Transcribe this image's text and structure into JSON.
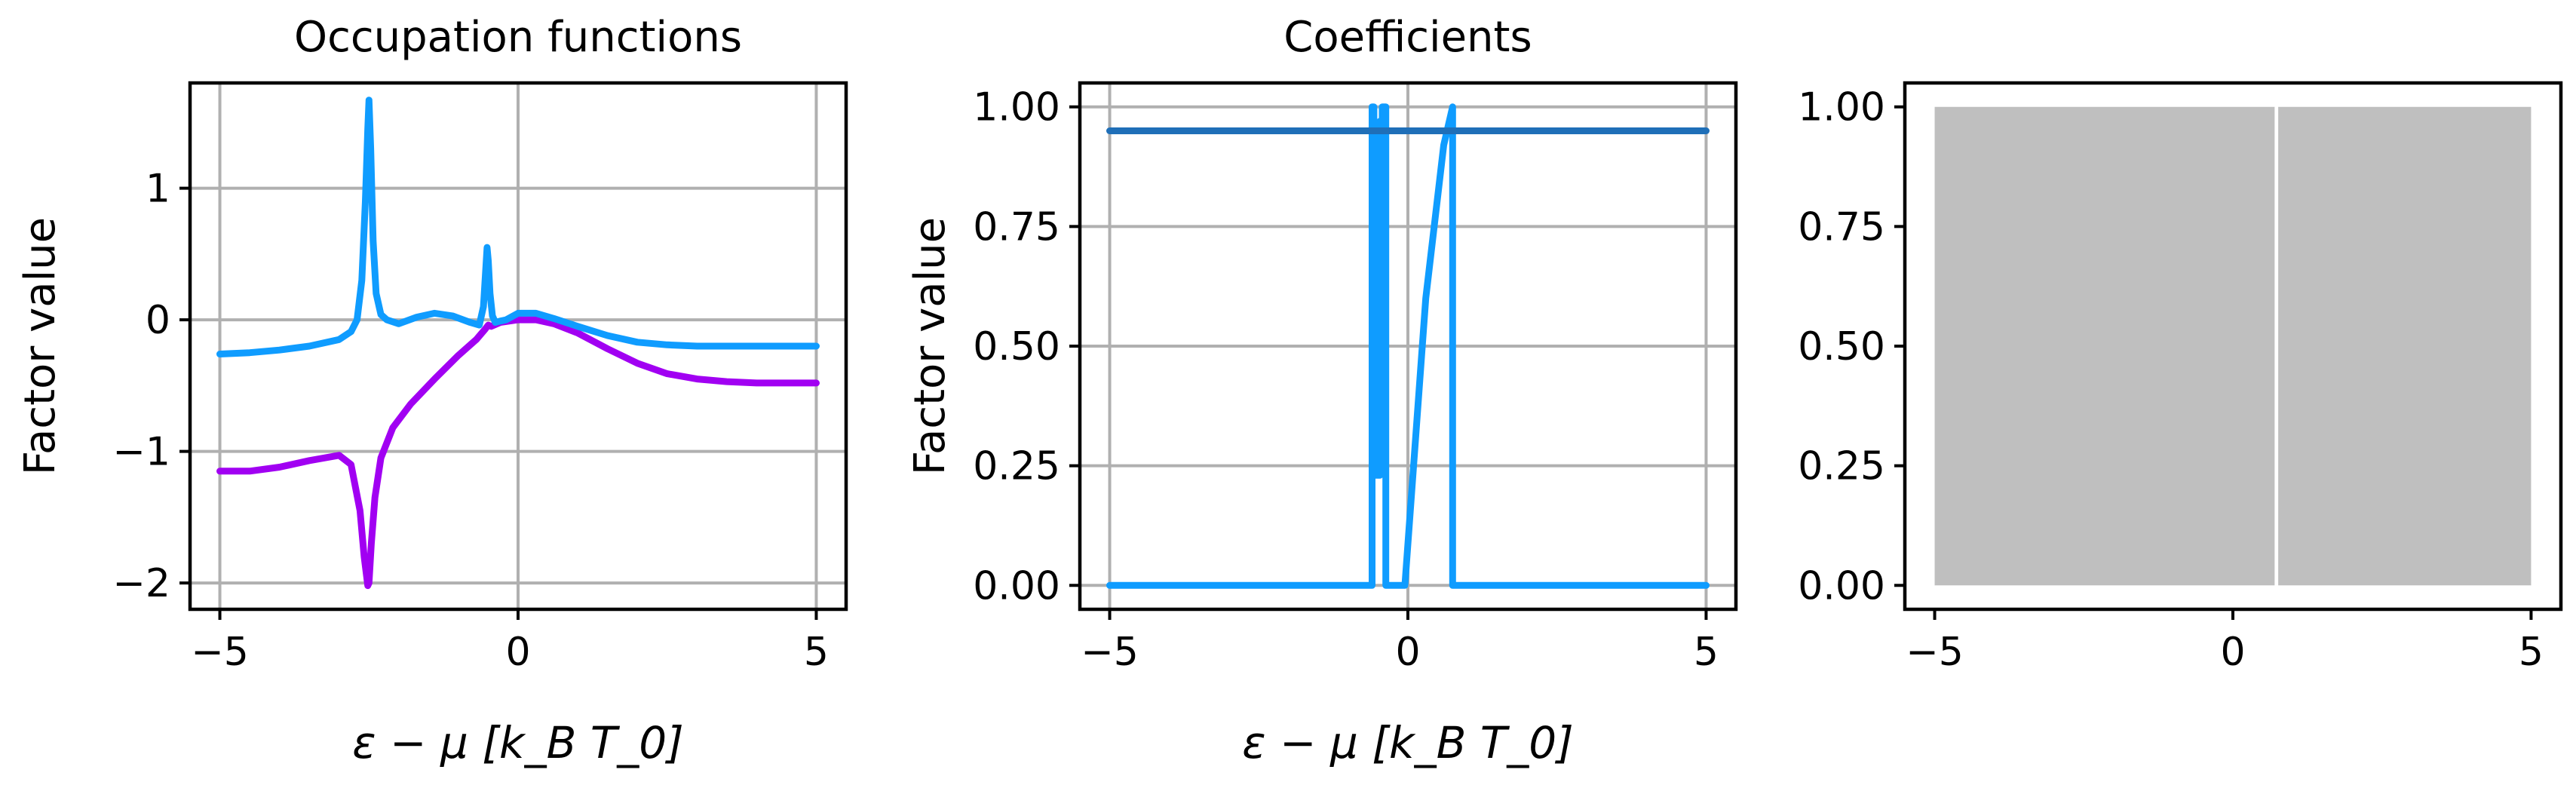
{
  "chart_data": [
    {
      "type": "line",
      "title": "Occupation functions",
      "xlabel": "ε − μ [k_B T_0]",
      "ylabel": "Factor value",
      "xlim": [
        -5.5,
        5.5
      ],
      "ylim": [
        -2.2,
        1.8
      ],
      "xticks": [
        {
          "v": -5,
          "label": "−5"
        },
        {
          "v": 0,
          "label": "0"
        },
        {
          "v": 5,
          "label": "5"
        }
      ],
      "yticks": [
        {
          "v": -2,
          "label": "−2"
        },
        {
          "v": -1,
          "label": "−1"
        },
        {
          "v": 0,
          "label": "0"
        },
        {
          "v": 1,
          "label": "1"
        }
      ],
      "grid": true,
      "series": [
        {
          "color": "#a100f2",
          "x": [
            -5,
            -4.5,
            -4,
            -3.5,
            -3,
            -2.8,
            -2.65,
            -2.58,
            -2.52,
            -2.5,
            -2.46,
            -2.4,
            -2.3,
            -2.1,
            -1.8,
            -1.4,
            -1.0,
            -0.7,
            -0.55,
            -0.5,
            -0.45,
            -0.3,
            0,
            0.3,
            0.6,
            1,
            1.5,
            2,
            2.5,
            3,
            3.5,
            4,
            4.5,
            5
          ],
          "y": [
            -1.15,
            -1.15,
            -1.12,
            -1.07,
            -1.03,
            -1.1,
            -1.45,
            -1.8,
            -2.02,
            -2.0,
            -1.7,
            -1.35,
            -1.05,
            -0.82,
            -0.64,
            -0.45,
            -0.27,
            -0.15,
            -0.07,
            -0.04,
            -0.05,
            -0.02,
            0.0,
            0.0,
            -0.03,
            -0.1,
            -0.22,
            -0.33,
            -0.41,
            -0.45,
            -0.47,
            -0.48,
            -0.48,
            -0.48
          ]
        },
        {
          "color": "#0f9cff",
          "x": [
            -5,
            -4.5,
            -4,
            -3.5,
            -3,
            -2.8,
            -2.7,
            -2.62,
            -2.56,
            -2.52,
            -2.5,
            -2.47,
            -2.43,
            -2.38,
            -2.3,
            -2.2,
            -2.0,
            -1.7,
            -1.4,
            -1.1,
            -0.8,
            -0.65,
            -0.58,
            -0.54,
            -0.52,
            -0.5,
            -0.47,
            -0.43,
            -0.38,
            -0.3,
            -0.2,
            0,
            0.3,
            0.6,
            1,
            1.5,
            2,
            2.5,
            3,
            3.5,
            4,
            4.5,
            5
          ],
          "y": [
            -0.26,
            -0.25,
            -0.23,
            -0.2,
            -0.15,
            -0.09,
            0.0,
            0.3,
            0.9,
            1.45,
            1.67,
            1.3,
            0.6,
            0.2,
            0.04,
            0.0,
            -0.03,
            0.02,
            0.05,
            0.03,
            -0.02,
            -0.04,
            0.1,
            0.4,
            0.55,
            0.45,
            0.2,
            0.03,
            -0.02,
            -0.01,
            0.0,
            0.05,
            0.05,
            0.01,
            -0.05,
            -0.12,
            -0.17,
            -0.19,
            -0.2,
            -0.2,
            -0.2,
            -0.2,
            -0.2
          ]
        }
      ]
    },
    {
      "type": "line",
      "title": "Coefficients",
      "xlabel": "ε − μ [k_B T_0]",
      "ylabel": "Factor value",
      "xlim": [
        -5.5,
        5.5
      ],
      "ylim": [
        -0.05,
        1.05
      ],
      "xticks": [
        {
          "v": -5,
          "label": "−5"
        },
        {
          "v": 0,
          "label": "0"
        },
        {
          "v": 5,
          "label": "5"
        }
      ],
      "yticks": [
        {
          "v": 0,
          "label": "0.00"
        },
        {
          "v": 0.25,
          "label": "0.25"
        },
        {
          "v": 0.5,
          "label": "0.50"
        },
        {
          "v": 0.75,
          "label": "0.75"
        },
        {
          "v": 1,
          "label": "1.00"
        }
      ],
      "grid": true,
      "series": [
        {
          "color": "#0f9cff",
          "x": [
            -5,
            -0.6,
            -0.6,
            -0.57,
            -0.57,
            -0.47,
            -0.47,
            -0.43,
            -0.43,
            -0.37,
            -0.37,
            -0.05,
            -0.05,
            0.3,
            0.6,
            0.75,
            0.75,
            5
          ],
          "y": [
            0,
            0,
            1,
            1,
            0.23,
            0.23,
            0.97,
            0.97,
            1,
            1,
            0,
            0,
            0,
            0.6,
            0.92,
            1,
            0,
            0
          ]
        },
        {
          "color": "#1f6fb8",
          "x": [
            -5,
            5
          ],
          "y": [
            0.95,
            0.95
          ]
        }
      ]
    },
    {
      "type": "bar",
      "title": "",
      "xlabel": "",
      "ylabel": "",
      "xlim": [
        -5.5,
        5.5
      ],
      "ylim": [
        -0.05,
        1.05
      ],
      "xticks": [
        {
          "v": -5,
          "label": "−5"
        },
        {
          "v": 0,
          "label": "0"
        },
        {
          "v": 5,
          "label": "5"
        }
      ],
      "yticks": [
        {
          "v": 0,
          "label": "0.00"
        },
        {
          "v": 0.25,
          "label": "0.25"
        },
        {
          "v": 0.5,
          "label": "0.50"
        },
        {
          "v": 0.75,
          "label": "0.75"
        },
        {
          "v": 1,
          "label": "1.00"
        }
      ],
      "grid": false,
      "fill_color": "#bfbfbf",
      "segments": [
        {
          "x0": -5,
          "x1": 0.7,
          "value": 1.0
        },
        {
          "x0": 0.76,
          "x1": 5,
          "value": 1.0
        }
      ]
    }
  ]
}
